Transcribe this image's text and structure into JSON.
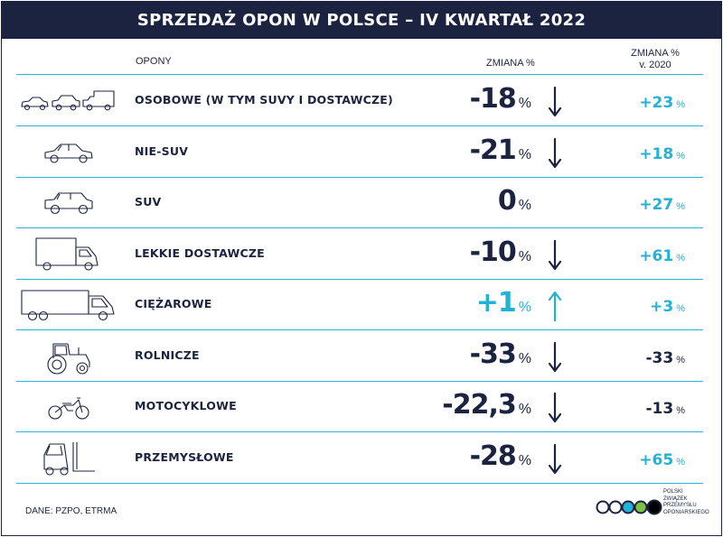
{
  "title": "SPRZEDAŻ OPON W POLSCE – IV KWARTAŁ 2022",
  "headers": {
    "tyres": "OPONY",
    "change": "ZMIANA %",
    "change2_l1": "ZMIANA %",
    "change2_l2": "v. 2020"
  },
  "colors": {
    "navy": "#1b2340",
    "cyan": "#22b2d3",
    "divider": "#2bb5d6"
  },
  "rows": [
    {
      "icon": "three-vehicles-icon",
      "name": "OSOBOWE (W TYM SUVY I DOSTAWCZE)",
      "change": "-18",
      "unit": "%",
      "direction": "down",
      "change2": "+23",
      "unit2": "%"
    },
    {
      "icon": "car-icon",
      "name": "NIE-SUV",
      "change": "-21",
      "unit": "%",
      "direction": "down",
      "change2": "+18",
      "unit2": "%"
    },
    {
      "icon": "suv-icon",
      "name": "SUV",
      "change": "0",
      "unit": "%",
      "direction": "none",
      "change2": "+27",
      "unit2": "%"
    },
    {
      "icon": "van-icon",
      "name": "LEKKIE DOSTAWCZE",
      "change": "-10",
      "unit": "%",
      "direction": "down",
      "change2": "+61",
      "unit2": "%"
    },
    {
      "icon": "truck-icon",
      "name": "CIĘŻAROWE",
      "change": "+1",
      "unit": "%",
      "direction": "up",
      "change2": "+3",
      "unit2": "%"
    },
    {
      "icon": "tractor-icon",
      "name": "ROLNICZE",
      "change": "-33",
      "unit": "%",
      "direction": "down",
      "change2": "-33",
      "unit2": "%"
    },
    {
      "icon": "motorcycle-icon",
      "name": "MOTOCYKLOWE",
      "change": "-22,3",
      "unit": "%",
      "direction": "down",
      "change2": "-13",
      "unit2": "%"
    },
    {
      "icon": "forklift-icon",
      "name": "PRZEMYSŁOWE",
      "change": "-28",
      "unit": "%",
      "direction": "down",
      "change2": "+65",
      "unit2": "%"
    }
  ],
  "source": "DANE: PZPO, ETRMA",
  "logo": {
    "lines": [
      "POLSKI",
      "ZWIĄZEK",
      "PRZEMYSŁU",
      "OPONIARSKIEGO"
    ]
  }
}
